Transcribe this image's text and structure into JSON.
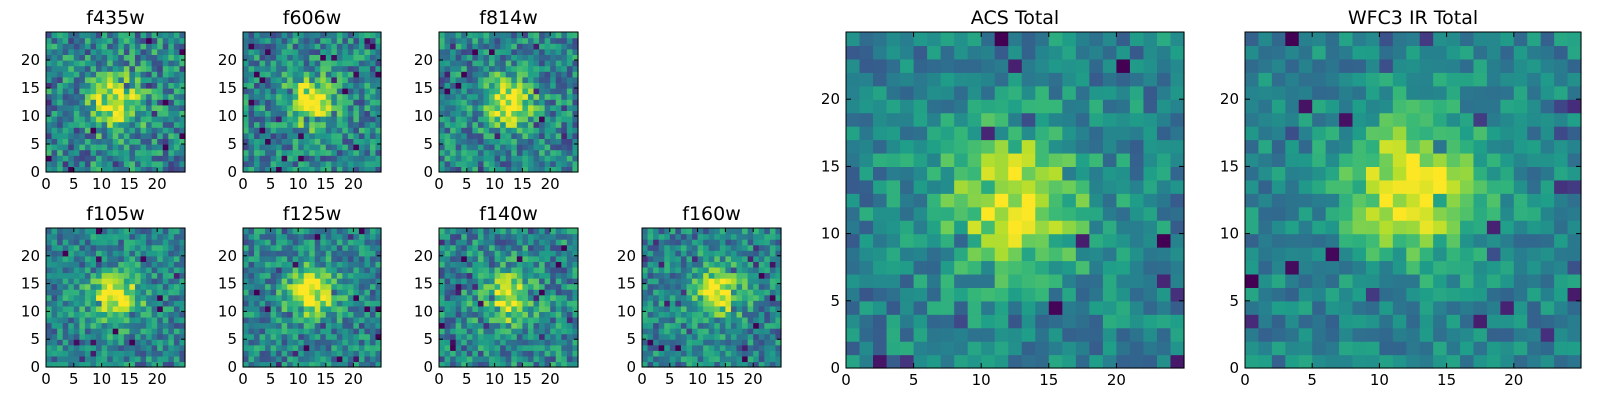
{
  "chart_data": [
    {
      "type": "heatmap",
      "title": "f435w",
      "grid": "25x25",
      "xlim": [
        0,
        25
      ],
      "ylim": [
        0,
        25
      ],
      "xticks": [
        0,
        5,
        10,
        15,
        20
      ],
      "yticks": [
        0,
        5,
        10,
        15,
        20
      ],
      "peak": [
        12,
        12
      ],
      "noise": 0.55,
      "colormap": "viridis"
    },
    {
      "type": "heatmap",
      "title": "f606w",
      "grid": "25x25",
      "xlim": [
        0,
        25
      ],
      "ylim": [
        0,
        25
      ],
      "xticks": [
        0,
        5,
        10,
        15,
        20
      ],
      "yticks": [
        0,
        5,
        10,
        15,
        20
      ],
      "peak": [
        12,
        12
      ],
      "noise": 0.5,
      "colormap": "viridis"
    },
    {
      "type": "heatmap",
      "title": "f814w",
      "grid": "25x25",
      "xlim": [
        0,
        25
      ],
      "ylim": [
        0,
        25
      ],
      "xticks": [
        0,
        5,
        10,
        15,
        20
      ],
      "yticks": [
        0,
        5,
        10,
        15,
        20
      ],
      "peak": [
        12,
        12
      ],
      "noise": 0.5,
      "colormap": "viridis"
    },
    {
      "type": "heatmap",
      "title": "f105w",
      "grid": "25x25",
      "xlim": [
        0,
        25
      ],
      "ylim": [
        0,
        25
      ],
      "xticks": [
        0,
        5,
        10,
        15,
        20
      ],
      "yticks": [
        0,
        5,
        10,
        15,
        20
      ],
      "peak": [
        12,
        12
      ],
      "noise": 0.45,
      "colormap": "viridis"
    },
    {
      "type": "heatmap",
      "title": "f125w",
      "grid": "25x25",
      "xlim": [
        0,
        25
      ],
      "ylim": [
        0,
        25
      ],
      "xticks": [
        0,
        5,
        10,
        15,
        20
      ],
      "yticks": [
        0,
        5,
        10,
        15,
        20
      ],
      "peak": [
        12,
        13
      ],
      "noise": 0.45,
      "colormap": "viridis"
    },
    {
      "type": "heatmap",
      "title": "f140w",
      "grid": "25x25",
      "xlim": [
        0,
        25
      ],
      "ylim": [
        0,
        25
      ],
      "xticks": [
        0,
        5,
        10,
        15,
        20
      ],
      "yticks": [
        0,
        5,
        10,
        15,
        20
      ],
      "peak": [
        12,
        12
      ],
      "noise": 0.5,
      "colormap": "viridis"
    },
    {
      "type": "heatmap",
      "title": "f160w",
      "grid": "25x25",
      "xlim": [
        0,
        25
      ],
      "ylim": [
        0,
        25
      ],
      "xticks": [
        0,
        5,
        10,
        15,
        20
      ],
      "yticks": [
        0,
        5,
        10,
        15,
        20
      ],
      "peak": [
        13,
        13
      ],
      "noise": 0.45,
      "colormap": "viridis"
    },
    {
      "type": "heatmap",
      "title": "ACS Total",
      "grid": "25x25",
      "xlim": [
        0,
        25
      ],
      "ylim": [
        0,
        25
      ],
      "xticks": [
        0,
        5,
        10,
        15,
        20
      ],
      "yticks": [
        0,
        5,
        10,
        15,
        20
      ],
      "peak": [
        12,
        12
      ],
      "noise": 0.35,
      "colormap": "viridis"
    },
    {
      "type": "heatmap",
      "title": "WFC3 IR Total",
      "grid": "25x25",
      "xlim": [
        0,
        25
      ],
      "ylim": [
        0,
        25
      ],
      "xticks": [
        0,
        5,
        10,
        15,
        20
      ],
      "yticks": [
        0,
        5,
        10,
        15,
        20
      ],
      "peak": [
        12,
        13
      ],
      "noise": 0.3,
      "colormap": "viridis"
    }
  ]
}
